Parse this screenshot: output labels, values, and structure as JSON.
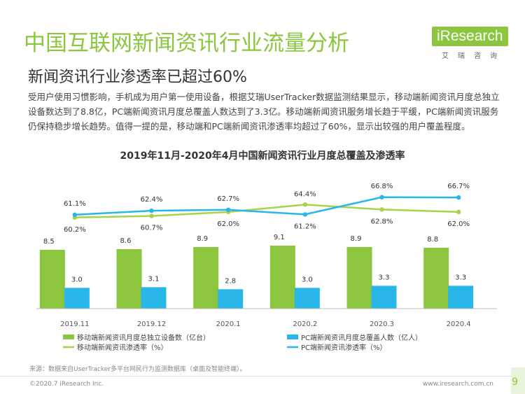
{
  "header": {
    "title": "中国互联网新闻资讯行业流量分析",
    "subtitle": "新闻资讯行业渗透率已超过60%",
    "logo_text": "iResearch",
    "logo_sub": "艾瑞咨询"
  },
  "description": "受用户使用习惯影响，手机成为用户第一使用设备，根据艾瑞UserTracker数据监测结果显示，移动端新闻资讯月度总独立设备数达到了8.8亿，PC端新闻资讯月度总覆盖人数达到了3.3亿。移动端新闻资讯服务增长趋于平缓，PC端新闻资讯服务仍保持稳步增长趋势。值得一提的是，移动端和PC端新闻资讯渗透率均超过了60%，显示出较强的用户覆盖程度。",
  "chart_data": {
    "type": "bar",
    "title": "2019年11月-2020年4月中国新闻资讯行业月度总覆盖及渗透率",
    "categories": [
      "2019.11",
      "2019.12",
      "2020.1",
      "2020.2",
      "2020.3",
      "2020.4"
    ],
    "bar_series": [
      {
        "name": "移动端新闻资讯月度总独立设备数（亿台）",
        "color": "#8cc63f",
        "values": [
          8.5,
          8.6,
          8.9,
          9.1,
          8.9,
          8.8
        ],
        "labels": [
          "8.5",
          "8.6",
          "8.9",
          "9.1",
          "8.9",
          "8.8"
        ]
      },
      {
        "name": "PC端新闻资讯月度总覆盖人数（亿人）",
        "color": "#29b6e8",
        "values": [
          3.0,
          3.1,
          2.8,
          3.0,
          3.3,
          3.3
        ],
        "labels": [
          "3.0",
          "3.1",
          "2.8",
          "3.0",
          "3.3",
          "3.3"
        ]
      }
    ],
    "line_series": [
      {
        "name": "移动端新闻资讯渗透率（%）",
        "color": "#a8d44a",
        "values": [
          60.2,
          60.7,
          62.0,
          64.4,
          62.8,
          62.0
        ],
        "labels": [
          "60.2%",
          "60.7%",
          "62.0%",
          "64.4%",
          "62.8%",
          "62.0%"
        ]
      },
      {
        "name": "PC端新闻资讯渗透率（%）",
        "color": "#29b6e8",
        "values": [
          61.1,
          62.4,
          62.7,
          61.2,
          66.8,
          66.7
        ],
        "labels": [
          "61.1%",
          "62.4%",
          "62.7%",
          "61.2%",
          "66.8%",
          "66.7%"
        ]
      }
    ],
    "legend_placement": "bottom"
  },
  "footer": {
    "source": "来源：数据来自UserTracker多平台网民行为监测数据库（桌面及智能终端）。",
    "copyright": "©2020.7 iResearch Inc.",
    "website": "www.iresearch.com.cn",
    "page": "9"
  }
}
